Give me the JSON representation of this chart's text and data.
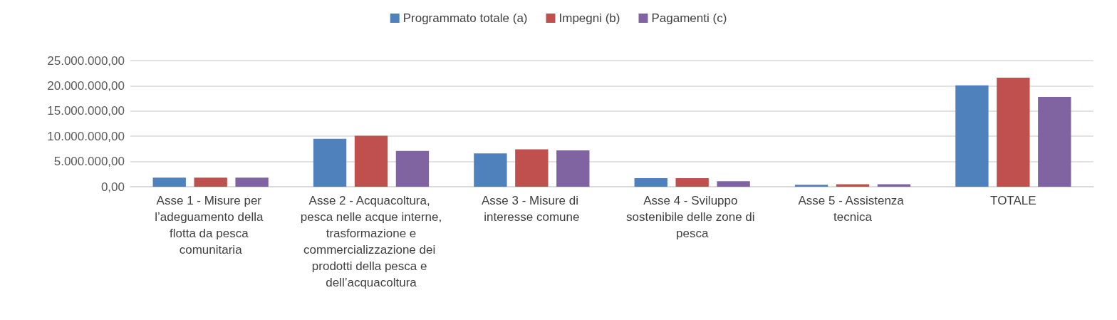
{
  "chart_data": {
    "type": "bar",
    "categories": [
      "Asse 1 - Misure per l’adeguamento della flotta da pesca comunitaria",
      "Asse 2 - Acquacoltura, pesca nelle acque interne, trasformazione e commercializzazione dei prodotti della pesca e dell’acquacoltura",
      "Asse 3 - Misure di interesse comune",
      "Asse 4 - Sviluppo sostenibile delle zone di pesca",
      "Asse 5 - Assistenza tecnica",
      "TOTALE"
    ],
    "series": [
      {
        "name": "Programmato totale (a)",
        "color": "#4f81bd",
        "values": [
          1800000,
          9500000,
          6600000,
          1700000,
          400000,
          20100000
        ]
      },
      {
        "name": "Impegni (b)",
        "color": "#c0504d",
        "values": [
          1800000,
          10100000,
          7400000,
          1700000,
          500000,
          21600000
        ]
      },
      {
        "name": "Pagamenti (c)",
        "color": "#8064a2",
        "values": [
          1800000,
          7100000,
          7200000,
          1100000,
          500000,
          17800000
        ]
      }
    ],
    "ylim": [
      0,
      25000000
    ],
    "yticks": [
      {
        "value": 0,
        "label": "0,00"
      },
      {
        "value": 5000000,
        "label": "5.000.000,00"
      },
      {
        "value": 10000000,
        "label": "10.000.000,00"
      },
      {
        "value": 15000000,
        "label": "15.000.000,00"
      },
      {
        "value": 20000000,
        "label": "20.000.000,00"
      },
      {
        "value": 25000000,
        "label": "25.000.000,00"
      }
    ],
    "grid": "y",
    "legend": "top"
  }
}
